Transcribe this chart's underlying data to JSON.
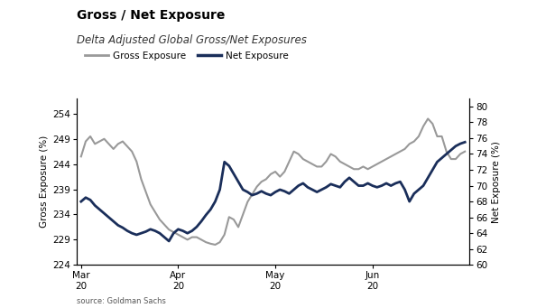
{
  "title": "Gross / Net Exposure",
  "subtitle": "Delta Adjusted Global Gross/Net Exposures",
  "source": "source: Goldman Sachs",
  "gross_label": "Gross Exposure",
  "net_label": "Net Exposure",
  "ylabel_left": "Gross Exposure (%)",
  "ylabel_right": "Net Exposure (%)",
  "ylim_left": [
    224,
    257
  ],
  "ylim_right": [
    60,
    81
  ],
  "yticks_left": [
    224,
    229,
    234,
    239,
    244,
    249,
    254
  ],
  "yticks_right": [
    60,
    62,
    64,
    66,
    68,
    70,
    72,
    74,
    76,
    78,
    80
  ],
  "xtick_positions": [
    0,
    21,
    42,
    63
  ],
  "xtick_labels": [
    "Mar\n20",
    "Apr\n20",
    "May\n20",
    "Jun\n20"
  ],
  "gross_color": "#999999",
  "net_color": "#1a2e5a",
  "background_color": "#ffffff",
  "title_fontsize": 10,
  "subtitle_fontsize": 8.5,
  "axis_fontsize": 7.5,
  "legend_fontsize": 7.5,
  "gross_y": [
    245.5,
    248.5,
    249.5,
    248.0,
    248.5,
    249.0,
    248.0,
    247.0,
    248.0,
    248.5,
    247.5,
    246.5,
    244.5,
    241.0,
    238.5,
    236.0,
    234.5,
    233.0,
    232.0,
    231.0,
    230.5,
    230.0,
    229.5,
    229.0,
    229.5,
    229.5,
    229.0,
    228.5,
    228.2,
    228.0,
    228.5,
    230.0,
    233.5,
    233.0,
    231.5,
    234.0,
    236.5,
    238.0,
    239.5,
    240.5,
    241.0,
    242.0,
    242.5,
    241.5,
    242.5,
    244.5,
    246.5,
    246.0,
    245.0,
    244.5,
    244.0,
    243.5,
    243.5,
    244.5,
    246.0,
    245.5,
    244.5,
    244.0,
    243.5,
    243.0,
    243.0,
    243.5,
    243.0,
    243.5,
    244.0,
    244.5,
    245.0,
    245.5,
    246.0,
    246.5,
    247.0,
    248.0,
    248.5,
    249.5,
    251.5,
    253.0,
    252.0,
    249.5,
    249.5,
    246.5,
    245.0,
    245.0,
    246.0,
    246.5
  ],
  "net_y": [
    68.0,
    68.5,
    68.2,
    67.5,
    67.0,
    66.5,
    66.0,
    65.5,
    65.0,
    64.7,
    64.3,
    64.0,
    63.8,
    64.0,
    64.2,
    64.5,
    64.3,
    64.0,
    63.5,
    63.0,
    64.0,
    64.5,
    64.3,
    64.0,
    64.3,
    64.8,
    65.5,
    66.3,
    67.0,
    68.0,
    69.5,
    73.0,
    72.5,
    71.5,
    70.5,
    69.5,
    69.2,
    68.8,
    69.0,
    69.3,
    69.0,
    68.8,
    69.2,
    69.5,
    69.3,
    69.0,
    69.5,
    70.0,
    70.3,
    69.8,
    69.5,
    69.2,
    69.5,
    69.8,
    70.2,
    70.0,
    69.8,
    70.5,
    71.0,
    70.5,
    70.0,
    70.0,
    70.3,
    70.0,
    69.8,
    70.0,
    70.3,
    70.0,
    70.3,
    70.5,
    69.5,
    68.0,
    69.0,
    69.5,
    70.0,
    71.0,
    72.0,
    73.0,
    73.5,
    74.0,
    74.5,
    75.0,
    75.3,
    75.5
  ]
}
